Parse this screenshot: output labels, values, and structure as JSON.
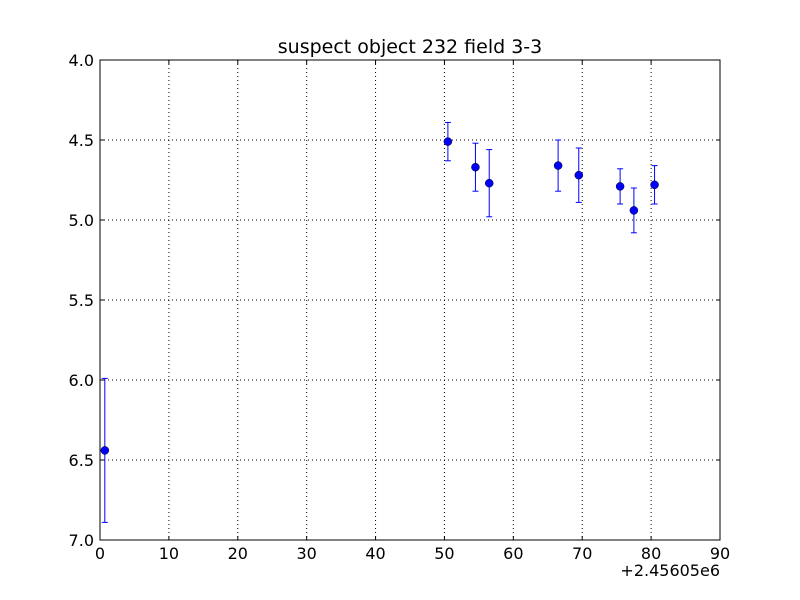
{
  "chart_data": {
    "type": "scatter",
    "title": "suspect object 232 field 3-3",
    "xlabel": "",
    "ylabel": "",
    "x_offset_label": "+2.45605e6",
    "xlim": [
      0,
      90
    ],
    "ylim": [
      7.0,
      4.0
    ],
    "y_inverted": true,
    "grid": true,
    "x_ticks": [
      "0",
      "10",
      "20",
      "30",
      "40",
      "50",
      "60",
      "70",
      "80",
      "90"
    ],
    "y_ticks": [
      "4.0",
      "4.5",
      "5.0",
      "5.5",
      "6.0",
      "6.5",
      "7.0"
    ],
    "marker_color": "#0000ff",
    "points": [
      {
        "x": 0.7,
        "y": 6.44,
        "err": 0.45
      },
      {
        "x": 50.5,
        "y": 4.51,
        "err": 0.12
      },
      {
        "x": 54.5,
        "y": 4.67,
        "err": 0.15
      },
      {
        "x": 56.5,
        "y": 4.77,
        "err": 0.21
      },
      {
        "x": 66.5,
        "y": 4.66,
        "err": 0.16
      },
      {
        "x": 69.5,
        "y": 4.72,
        "err": 0.17
      },
      {
        "x": 75.5,
        "y": 4.79,
        "err": 0.11
      },
      {
        "x": 77.5,
        "y": 4.94,
        "err": 0.14
      },
      {
        "x": 80.5,
        "y": 4.78,
        "err": 0.12
      }
    ]
  }
}
